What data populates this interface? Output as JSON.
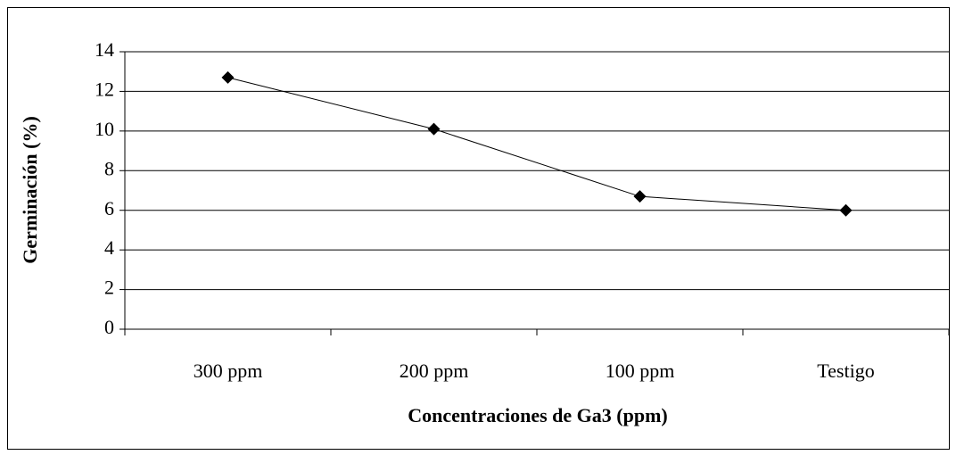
{
  "chart_data": {
    "type": "line",
    "x_label": "Concentraciones de Ga3 (ppm)",
    "y_label": "Germinación (%)",
    "categories": [
      "300 ppm",
      "200 ppm",
      "100 ppm",
      "Testigo"
    ],
    "values": [
      12.7,
      10.1,
      6.7,
      6.0
    ],
    "color": "#000000",
    "ylim": [
      0,
      14
    ],
    "yticks": [
      0,
      2,
      4,
      6,
      8,
      10,
      12,
      14
    ],
    "grid": true
  }
}
